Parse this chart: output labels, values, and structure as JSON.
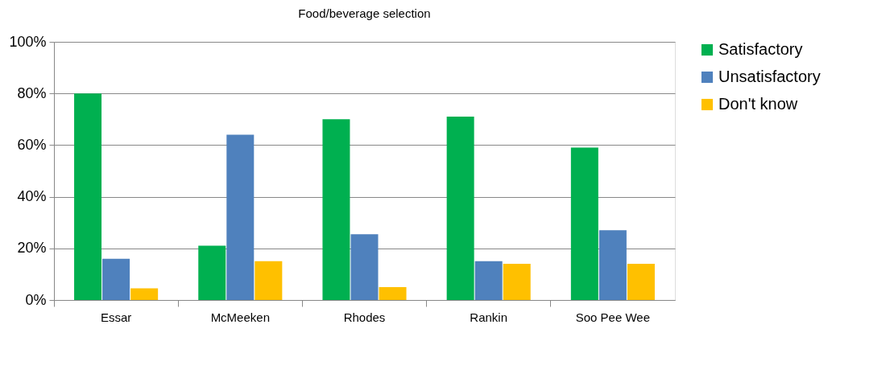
{
  "chart_data": {
    "type": "bar",
    "title": "Food/beverage selection",
    "categories": [
      "Essar",
      "McMeeken",
      "Rhodes",
      "Rankin",
      "Soo Pee Wee"
    ],
    "series": [
      {
        "name": "Satisfactory",
        "color": "#00b050",
        "values": [
          80,
          21,
          70,
          71,
          59
        ]
      },
      {
        "name": "Unsatisfactory",
        "color": "#4f81bd",
        "values": [
          16,
          64,
          25.5,
          15,
          27
        ]
      },
      {
        "name": "Don't know",
        "color": "#ffc000",
        "values": [
          4.5,
          15,
          5,
          14,
          14
        ]
      }
    ],
    "ylim": [
      0,
      100
    ],
    "yticks": [
      {
        "value": 0,
        "label": "0%"
      },
      {
        "value": 20,
        "label": "20%"
      },
      {
        "value": 40,
        "label": "40%"
      },
      {
        "value": 60,
        "label": "60%"
      },
      {
        "value": 80,
        "label": "80%"
      },
      {
        "value": 100,
        "label": "100%"
      }
    ],
    "grid": "y",
    "legend": "right"
  }
}
